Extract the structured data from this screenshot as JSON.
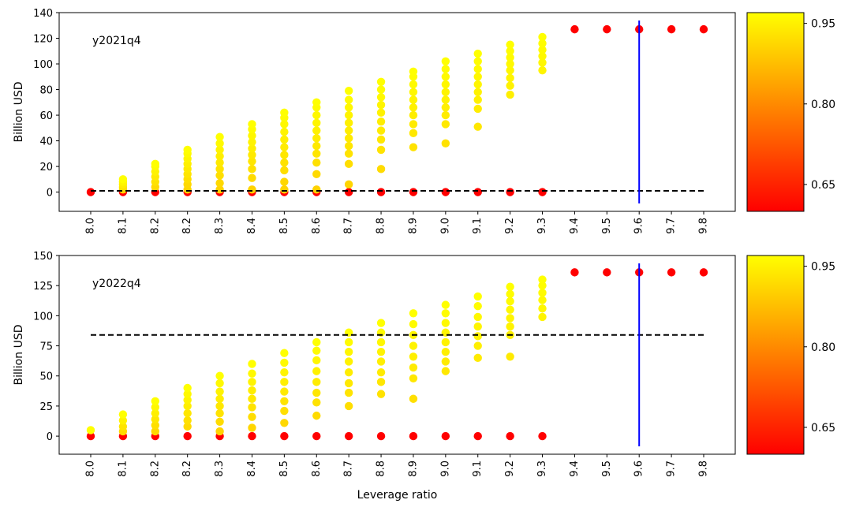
{
  "chart_data": [
    {
      "type": "scatter",
      "annotation": "y2021q4",
      "ylabel": "Billion USD",
      "xlabel": "",
      "ylim": [
        -15,
        140
      ],
      "yticks": [
        0,
        20,
        40,
        60,
        80,
        100,
        120,
        140
      ],
      "xticks": [
        "8.0",
        "8.1",
        "8.2",
        "8.2",
        "8.3",
        "8.4",
        "8.5",
        "8.6",
        "8.7",
        "8.8",
        "8.9",
        "9.0",
        "9.1",
        "9.2",
        "9.3",
        "9.4",
        "9.5",
        "9.6",
        "9.7",
        "9.8"
      ],
      "reference_line_y": 1,
      "vertical_line_x_index": 17,
      "series": [
        {
          "values": [
            0
          ]
        },
        {
          "values": [
            0,
            2,
            4,
            6,
            8,
            10
          ]
        },
        {
          "values": [
            0,
            4,
            8,
            12,
            16,
            20,
            22
          ]
        },
        {
          "values": [
            0,
            2,
            6,
            10,
            14,
            18,
            22,
            26,
            30,
            33
          ]
        },
        {
          "values": [
            0,
            2,
            7,
            13,
            18,
            23,
            28,
            33,
            38,
            43
          ]
        },
        {
          "values": [
            0,
            2,
            11,
            18,
            24,
            29,
            34,
            39,
            44,
            49,
            53
          ]
        },
        {
          "values": [
            0,
            2,
            8,
            17,
            23,
            29,
            35,
            41,
            47,
            53,
            58,
            62
          ]
        },
        {
          "values": [
            0,
            2,
            14,
            23,
            30,
            36,
            42,
            48,
            54,
            60,
            66,
            70
          ]
        },
        {
          "values": [
            0,
            6,
            22,
            30,
            36,
            42,
            48,
            54,
            60,
            66,
            72,
            79
          ]
        },
        {
          "values": [
            0,
            18,
            33,
            41,
            48,
            55,
            62,
            68,
            74,
            80,
            86
          ]
        },
        {
          "values": [
            0,
            35,
            46,
            53,
            60,
            66,
            72,
            78,
            84,
            90,
            94
          ]
        },
        {
          "values": [
            0,
            38,
            53,
            60,
            66,
            72,
            78,
            84,
            90,
            96,
            102
          ]
        },
        {
          "values": [
            0,
            51,
            65,
            72,
            78,
            84,
            90,
            96,
            102,
            108
          ]
        },
        {
          "values": [
            0,
            76,
            83,
            89,
            95,
            100,
            105,
            110,
            115
          ]
        },
        {
          "values": [
            0,
            95,
            101,
            106,
            111,
            116,
            121
          ]
        },
        {
          "values": [
            127
          ]
        },
        {
          "values": [
            127
          ]
        },
        {
          "values": [
            127
          ]
        },
        {
          "values": [
            127
          ]
        },
        {
          "values": [
            127
          ]
        }
      ],
      "colorbar": {
        "ticks": [
          0.65,
          0.8,
          0.95
        ],
        "range": [
          0.6,
          0.97
        ],
        "label_0": "0.65",
        "label_1": "0.80",
        "label_2": "0.95"
      }
    },
    {
      "type": "scatter",
      "annotation": "y2022q4",
      "ylabel": "Billion USD",
      "xlabel": "Leverage ratio",
      "ylim": [
        -15,
        150
      ],
      "yticks": [
        0,
        25,
        50,
        75,
        100,
        125,
        150
      ],
      "xticks": [
        "8.0",
        "8.1",
        "8.2",
        "8.2",
        "8.3",
        "8.4",
        "8.5",
        "8.6",
        "8.7",
        "8.8",
        "8.9",
        "9.0",
        "9.1",
        "9.2",
        "9.3",
        "9.4",
        "9.5",
        "9.6",
        "9.7",
        "9.8"
      ],
      "reference_line_y": 84,
      "vertical_line_x_index": 17,
      "series": [
        {
          "values": [
            0,
            5
          ]
        },
        {
          "values": [
            0,
            4,
            8,
            13,
            18
          ]
        },
        {
          "values": [
            0,
            4,
            9,
            14,
            19,
            24,
            29
          ]
        },
        {
          "values": [
            0,
            8,
            13,
            19,
            25,
            30,
            35,
            40
          ]
        },
        {
          "values": [
            0,
            4,
            12,
            19,
            25,
            31,
            37,
            44,
            50
          ]
        },
        {
          "values": [
            0,
            7,
            16,
            24,
            31,
            38,
            45,
            52,
            60
          ]
        },
        {
          "values": [
            0,
            11,
            21,
            29,
            37,
            45,
            53,
            61,
            69
          ]
        },
        {
          "values": [
            0,
            17,
            28,
            36,
            45,
            54,
            63,
            71,
            78
          ]
        },
        {
          "values": [
            0,
            25,
            36,
            44,
            53,
            62,
            70,
            78,
            86
          ]
        },
        {
          "values": [
            0,
            35,
            45,
            53,
            62,
            70,
            78,
            86,
            94
          ]
        },
        {
          "values": [
            0,
            31,
            48,
            57,
            66,
            75,
            84,
            93,
            102
          ]
        },
        {
          "values": [
            0,
            54,
            62,
            70,
            78,
            86,
            94,
            102,
            109
          ]
        },
        {
          "values": [
            0,
            65,
            75,
            83,
            91,
            99,
            108,
            116
          ]
        },
        {
          "values": [
            0,
            66,
            84,
            91,
            98,
            105,
            112,
            118,
            124
          ]
        },
        {
          "values": [
            0,
            99,
            106,
            113,
            119,
            125,
            130
          ]
        },
        {
          "values": [
            136
          ]
        },
        {
          "values": [
            136
          ]
        },
        {
          "values": [
            136
          ]
        },
        {
          "values": [
            136
          ]
        },
        {
          "values": [
            136
          ]
        }
      ],
      "colorbar": {
        "ticks": [
          0.65,
          0.8,
          0.95
        ],
        "range": [
          0.6,
          0.97
        ],
        "label_0": "0.65",
        "label_1": "0.80",
        "label_2": "0.95"
      }
    }
  ]
}
